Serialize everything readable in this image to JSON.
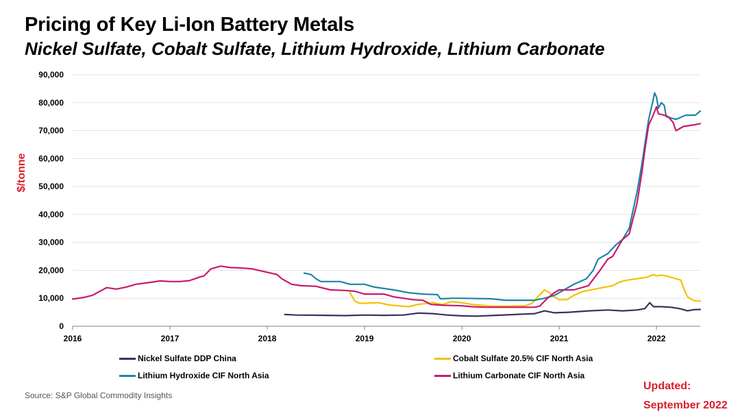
{
  "header": {
    "title": "Pricing of Key Li-Ion Battery Metals",
    "subtitle": "Nickel Sulfate, Cobalt Sulfate, Lithium Hydroxide, Lithium Carbonate"
  },
  "chart_data": {
    "type": "line",
    "title": "Pricing of Key Li-Ion Battery Metals",
    "xlabel": "",
    "ylabel": "$/tonne",
    "xlim": [
      2016,
      2022.45
    ],
    "ylim": [
      0,
      90000
    ],
    "x_ticks": [
      2016,
      2017,
      2018,
      2019,
      2020,
      2021,
      2022
    ],
    "x_tick_labels": [
      "2016",
      "2017",
      "2018",
      "2019",
      "2020",
      "2021",
      "2022"
    ],
    "y_ticks": [
      0,
      10000,
      20000,
      30000,
      40000,
      50000,
      60000,
      70000,
      80000,
      90000
    ],
    "y_tick_labels": [
      "0",
      "10,000",
      "20,000",
      "30,000",
      "40,000",
      "50,000",
      "60,000",
      "70,000",
      "80,000",
      "90,000"
    ],
    "grid": true,
    "legend_position": "bottom",
    "series": [
      {
        "name": "Nickel Sulfate DDP China",
        "color": "#3b2f5e",
        "points": [
          [
            2018.18,
            4200
          ],
          [
            2018.3,
            4000
          ],
          [
            2018.6,
            3900
          ],
          [
            2018.8,
            3800
          ],
          [
            2019.0,
            4000
          ],
          [
            2019.2,
            3900
          ],
          [
            2019.4,
            4000
          ],
          [
            2019.55,
            4700
          ],
          [
            2019.7,
            4500
          ],
          [
            2019.85,
            4000
          ],
          [
            2020.0,
            3700
          ],
          [
            2020.15,
            3600
          ],
          [
            2020.35,
            3900
          ],
          [
            2020.55,
            4200
          ],
          [
            2020.75,
            4500
          ],
          [
            2020.85,
            5500
          ],
          [
            2020.95,
            4800
          ],
          [
            2021.1,
            5000
          ],
          [
            2021.3,
            5500
          ],
          [
            2021.5,
            5800
          ],
          [
            2021.65,
            5500
          ],
          [
            2021.8,
            5800
          ],
          [
            2021.88,
            6300
          ],
          [
            2021.93,
            8400
          ],
          [
            2021.97,
            7000
          ],
          [
            2022.05,
            7000
          ],
          [
            2022.15,
            6800
          ],
          [
            2022.25,
            6200
          ],
          [
            2022.32,
            5500
          ],
          [
            2022.38,
            5900
          ],
          [
            2022.45,
            6000
          ]
        ]
      },
      {
        "name": "Cobalt Sulfate 20.5% CIF North Asia",
        "color": "#f2c200",
        "points": [
          [
            2018.85,
            12000
          ],
          [
            2018.9,
            9000
          ],
          [
            2018.95,
            8200
          ],
          [
            2019.05,
            8300
          ],
          [
            2019.15,
            8400
          ],
          [
            2019.25,
            7600
          ],
          [
            2019.35,
            7300
          ],
          [
            2019.45,
            7000
          ],
          [
            2019.55,
            7800
          ],
          [
            2019.7,
            8400
          ],
          [
            2019.8,
            7800
          ],
          [
            2019.9,
            8800
          ],
          [
            2020.0,
            8400
          ],
          [
            2020.1,
            7800
          ],
          [
            2020.3,
            7200
          ],
          [
            2020.5,
            7200
          ],
          [
            2020.65,
            7300
          ],
          [
            2020.72,
            8200
          ],
          [
            2020.8,
            11200
          ],
          [
            2020.85,
            13000
          ],
          [
            2020.9,
            12000
          ],
          [
            2020.95,
            10500
          ],
          [
            2021.0,
            9500
          ],
          [
            2021.08,
            9500
          ],
          [
            2021.15,
            11000
          ],
          [
            2021.25,
            12500
          ],
          [
            2021.4,
            13500
          ],
          [
            2021.55,
            14500
          ],
          [
            2021.62,
            15800
          ],
          [
            2021.7,
            16500
          ],
          [
            2021.8,
            17000
          ],
          [
            2021.9,
            17500
          ],
          [
            2021.97,
            18500
          ],
          [
            2022.0,
            18000
          ],
          [
            2022.05,
            18300
          ],
          [
            2022.1,
            18000
          ],
          [
            2022.2,
            17000
          ],
          [
            2022.25,
            16500
          ],
          [
            2022.28,
            13500
          ],
          [
            2022.32,
            10500
          ],
          [
            2022.38,
            9200
          ],
          [
            2022.45,
            9000
          ]
        ]
      },
      {
        "name": "Lithium Hydroxide CIF North Asia",
        "color": "#1f84a6",
        "points": [
          [
            2018.38,
            19000
          ],
          [
            2018.45,
            18500
          ],
          [
            2018.5,
            17000
          ],
          [
            2018.55,
            16000
          ],
          [
            2018.75,
            16000
          ],
          [
            2018.85,
            15000
          ],
          [
            2019.0,
            15000
          ],
          [
            2019.1,
            14000
          ],
          [
            2019.3,
            13000
          ],
          [
            2019.45,
            12000
          ],
          [
            2019.6,
            11500
          ],
          [
            2019.75,
            11300
          ],
          [
            2019.78,
            9800
          ],
          [
            2019.9,
            10000
          ],
          [
            2020.0,
            10000
          ],
          [
            2020.3,
            9800
          ],
          [
            2020.45,
            9300
          ],
          [
            2020.75,
            9300
          ],
          [
            2020.85,
            10000
          ],
          [
            2020.95,
            11000
          ],
          [
            2021.05,
            13000
          ],
          [
            2021.15,
            15000
          ],
          [
            2021.28,
            17000
          ],
          [
            2021.35,
            20000
          ],
          [
            2021.4,
            24000
          ],
          [
            2021.5,
            26000
          ],
          [
            2021.58,
            29000
          ],
          [
            2021.65,
            31000
          ],
          [
            2021.72,
            35000
          ],
          [
            2021.75,
            40000
          ],
          [
            2021.8,
            48000
          ],
          [
            2021.85,
            58000
          ],
          [
            2021.88,
            65000
          ],
          [
            2021.92,
            74000
          ],
          [
            2021.96,
            80000
          ],
          [
            2021.98,
            83500
          ],
          [
            2022.0,
            82000
          ],
          [
            2022.02,
            78000
          ],
          [
            2022.05,
            80000
          ],
          [
            2022.08,
            79000
          ],
          [
            2022.1,
            75000
          ],
          [
            2022.2,
            74000
          ],
          [
            2022.3,
            75500
          ],
          [
            2022.4,
            75500
          ],
          [
            2022.45,
            77000
          ]
        ]
      },
      {
        "name": "Lithium Carbonate CIF North Asia",
        "color": "#c8196e",
        "points": [
          [
            2016.0,
            9700
          ],
          [
            2016.1,
            10200
          ],
          [
            2016.2,
            11000
          ],
          [
            2016.35,
            13800
          ],
          [
            2016.45,
            13300
          ],
          [
            2016.55,
            14000
          ],
          [
            2016.65,
            15000
          ],
          [
            2016.8,
            15700
          ],
          [
            2016.9,
            16200
          ],
          [
            2017.0,
            16000
          ],
          [
            2017.1,
            16000
          ],
          [
            2017.2,
            16300
          ],
          [
            2017.3,
            17500
          ],
          [
            2017.35,
            18000
          ],
          [
            2017.42,
            20500
          ],
          [
            2017.52,
            21500
          ],
          [
            2017.62,
            21000
          ],
          [
            2017.75,
            20800
          ],
          [
            2017.85,
            20500
          ],
          [
            2018.0,
            19300
          ],
          [
            2018.1,
            18500
          ],
          [
            2018.15,
            17000
          ],
          [
            2018.25,
            15000
          ],
          [
            2018.35,
            14500
          ],
          [
            2018.5,
            14300
          ],
          [
            2018.65,
            13000
          ],
          [
            2018.8,
            12800
          ],
          [
            2018.9,
            12500
          ],
          [
            2019.0,
            11500
          ],
          [
            2019.2,
            11500
          ],
          [
            2019.3,
            10500
          ],
          [
            2019.4,
            10000
          ],
          [
            2019.5,
            9500
          ],
          [
            2019.6,
            9300
          ],
          [
            2019.68,
            7800
          ],
          [
            2019.8,
            7500
          ],
          [
            2020.0,
            7300
          ],
          [
            2020.1,
            7000
          ],
          [
            2020.25,
            6800
          ],
          [
            2020.5,
            6800
          ],
          [
            2020.75,
            6800
          ],
          [
            2020.8,
            7200
          ],
          [
            2020.88,
            10000
          ],
          [
            2020.95,
            12000
          ],
          [
            2021.0,
            13000
          ],
          [
            2021.15,
            13000
          ],
          [
            2021.3,
            14500
          ],
          [
            2021.42,
            20000
          ],
          [
            2021.5,
            24000
          ],
          [
            2021.55,
            25000
          ],
          [
            2021.65,
            31000
          ],
          [
            2021.72,
            33000
          ],
          [
            2021.8,
            44000
          ],
          [
            2021.85,
            55000
          ],
          [
            2021.88,
            63000
          ],
          [
            2021.92,
            72000
          ],
          [
            2021.96,
            75000
          ],
          [
            2022.0,
            78500
          ],
          [
            2022.02,
            76000
          ],
          [
            2022.08,
            75500
          ],
          [
            2022.12,
            75000
          ],
          [
            2022.17,
            73000
          ],
          [
            2022.2,
            70000
          ],
          [
            2022.28,
            71500
          ],
          [
            2022.38,
            72000
          ],
          [
            2022.45,
            72500
          ]
        ]
      }
    ]
  },
  "footer": {
    "source": "Source: S&P Global Commodity Insights",
    "updated_line1": "Updated:",
    "updated_line2": "September 2022"
  }
}
